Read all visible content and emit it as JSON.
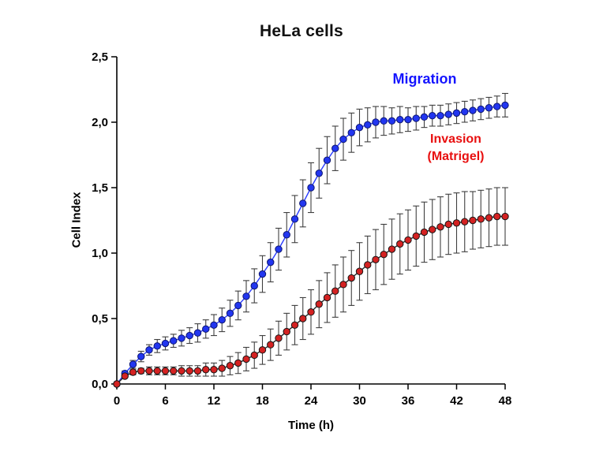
{
  "page": {
    "background": "#ffffff"
  },
  "chart_data": {
    "type": "line",
    "title": "HeLa cells",
    "xlabel": "Time (h)",
    "ylabel": "Cell Index",
    "xlim": [
      0,
      48
    ],
    "ylim": [
      0,
      2.5
    ],
    "grid": false,
    "legend_position": "none",
    "x_ticks": [
      0,
      6,
      12,
      18,
      24,
      30,
      36,
      42,
      48
    ],
    "x_tick_labels": [
      "0",
      "6",
      "12",
      "18",
      "24",
      "30",
      "36",
      "42",
      "48"
    ],
    "y_ticks": [
      0,
      0.5,
      1.0,
      1.5,
      2.0,
      2.5
    ],
    "y_tick_labels": [
      "0,0",
      "0,5",
      "1,0",
      "1,5",
      "2,0",
      "2,5"
    ],
    "x": [
      0,
      1,
      2,
      3,
      4,
      5,
      6,
      7,
      8,
      9,
      10,
      11,
      12,
      13,
      14,
      15,
      16,
      17,
      18,
      19,
      20,
      21,
      22,
      23,
      24,
      25,
      26,
      27,
      28,
      29,
      30,
      31,
      32,
      33,
      34,
      35,
      36,
      37,
      38,
      39,
      40,
      41,
      42,
      43,
      44,
      45,
      46,
      47,
      48
    ],
    "series": [
      {
        "name": "Migration",
        "values": [
          0.0,
          0.08,
          0.15,
          0.21,
          0.26,
          0.29,
          0.31,
          0.33,
          0.35,
          0.37,
          0.39,
          0.42,
          0.45,
          0.49,
          0.54,
          0.6,
          0.67,
          0.75,
          0.84,
          0.93,
          1.03,
          1.14,
          1.26,
          1.38,
          1.5,
          1.61,
          1.71,
          1.8,
          1.87,
          1.92,
          1.96,
          1.98,
          2.0,
          2.01,
          2.01,
          2.02,
          2.02,
          2.03,
          2.04,
          2.05,
          2.05,
          2.06,
          2.07,
          2.08,
          2.09,
          2.1,
          2.11,
          2.12,
          2.13
        ],
        "errors": [
          0.0,
          0.02,
          0.03,
          0.04,
          0.04,
          0.05,
          0.05,
          0.05,
          0.06,
          0.06,
          0.07,
          0.07,
          0.08,
          0.09,
          0.1,
          0.11,
          0.12,
          0.13,
          0.14,
          0.15,
          0.16,
          0.17,
          0.18,
          0.18,
          0.19,
          0.19,
          0.18,
          0.17,
          0.16,
          0.15,
          0.14,
          0.13,
          0.12,
          0.11,
          0.1,
          0.1,
          0.09,
          0.09,
          0.08,
          0.08,
          0.08,
          0.08,
          0.08,
          0.08,
          0.08,
          0.08,
          0.08,
          0.08,
          0.09
        ],
        "marker_color": "#2236f0",
        "marker_edge_color": "#0d1670",
        "line_color": "#2a3cff",
        "error_color": "#3f3f3f",
        "label_color": "#1414ff"
      },
      {
        "name": "Invasion (Matrigel)",
        "values": [
          0.0,
          0.06,
          0.09,
          0.1,
          0.1,
          0.1,
          0.1,
          0.1,
          0.1,
          0.1,
          0.1,
          0.11,
          0.11,
          0.12,
          0.14,
          0.16,
          0.19,
          0.22,
          0.26,
          0.3,
          0.35,
          0.4,
          0.45,
          0.5,
          0.55,
          0.61,
          0.66,
          0.71,
          0.76,
          0.81,
          0.86,
          0.91,
          0.95,
          0.99,
          1.03,
          1.07,
          1.1,
          1.13,
          1.16,
          1.18,
          1.2,
          1.22,
          1.23,
          1.24,
          1.25,
          1.26,
          1.27,
          1.28,
          1.28
        ],
        "errors": [
          0.0,
          0.01,
          0.02,
          0.02,
          0.03,
          0.03,
          0.03,
          0.03,
          0.04,
          0.04,
          0.04,
          0.05,
          0.05,
          0.06,
          0.07,
          0.08,
          0.09,
          0.1,
          0.11,
          0.12,
          0.13,
          0.14,
          0.15,
          0.16,
          0.17,
          0.18,
          0.19,
          0.2,
          0.21,
          0.21,
          0.22,
          0.22,
          0.23,
          0.23,
          0.23,
          0.23,
          0.23,
          0.23,
          0.23,
          0.23,
          0.23,
          0.23,
          0.23,
          0.23,
          0.22,
          0.22,
          0.22,
          0.22,
          0.22
        ],
        "marker_color": "#d42222",
        "marker_edge_color": "#151515",
        "line_color": "#262626",
        "error_color": "#3f3f3f",
        "label_color": "#e80f0f"
      }
    ],
    "annotations": [
      {
        "text": "Migration"
      },
      {
        "text": "Invasion"
      },
      {
        "text": "(Matrigel)"
      }
    ]
  }
}
